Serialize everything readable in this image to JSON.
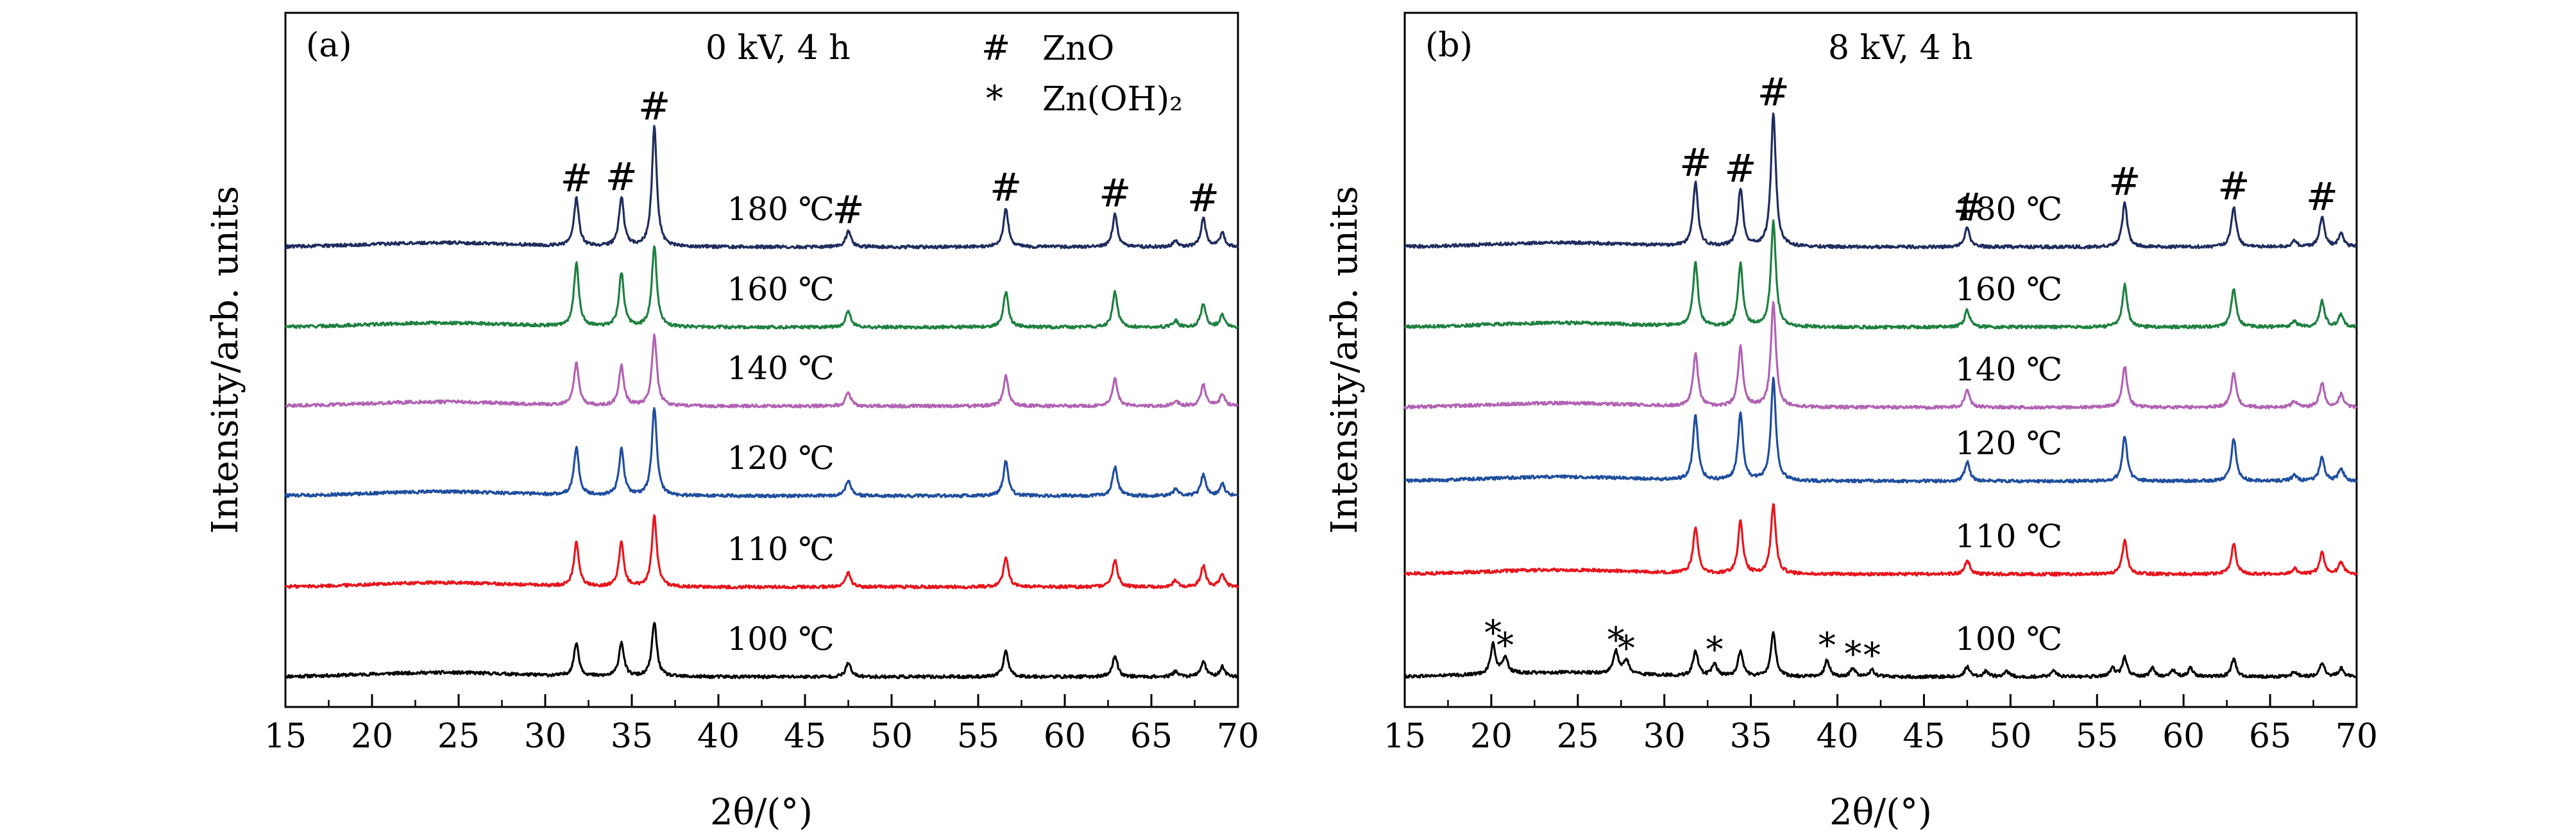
{
  "chart_data": [
    {
      "type": "line",
      "panel_label": "(a)",
      "title": "0 kV, 4 h",
      "xlabel": "2θ/(°)",
      "ylabel": "Intensity/arb. units",
      "xlim": [
        15,
        70
      ],
      "xticks": [
        15,
        20,
        25,
        30,
        35,
        40,
        45,
        50,
        55,
        60,
        65,
        70
      ],
      "legend": [
        {
          "symbol": "#",
          "label": "ZnO"
        },
        {
          "symbol": "*",
          "label": "Zn(OH)₂"
        }
      ],
      "peak_markers": [
        {
          "symbol": "#",
          "x": 31.8
        },
        {
          "symbol": "#",
          "x": 34.4
        },
        {
          "symbol": "#",
          "x": 36.3
        },
        {
          "symbol": "#",
          "x": 47.5
        },
        {
          "symbol": "#",
          "x": 56.6
        },
        {
          "symbol": "#",
          "x": 62.9
        },
        {
          "symbol": "#",
          "x": 68.0
        }
      ],
      "series": [
        {
          "name": "100 ℃",
          "label": "100 ℃",
          "color": "#000000",
          "offset": 0,
          "noise": 2.2,
          "peaks": [
            [
              31.8,
              47
            ],
            [
              34.4,
              49
            ],
            [
              36.3,
              77
            ],
            [
              47.5,
              20
            ],
            [
              56.6,
              37
            ],
            [
              62.9,
              30
            ],
            [
              66.4,
              8
            ],
            [
              68.0,
              22
            ],
            [
              69.1,
              14
            ]
          ],
          "extra_peaks": []
        },
        {
          "name": "110 ℃",
          "label": "110 ℃",
          "color": "#e8141c",
          "offset": 140,
          "noise": 2.2,
          "peaks": [
            [
              31.8,
              63
            ],
            [
              34.4,
              63
            ],
            [
              36.3,
              100
            ],
            [
              47.5,
              20
            ],
            [
              56.6,
              43
            ],
            [
              62.9,
              39
            ],
            [
              66.4,
              9
            ],
            [
              68.0,
              30
            ],
            [
              69.1,
              17
            ]
          ],
          "extra_peaks": []
        },
        {
          "name": "120 ℃",
          "label": "120 ℃",
          "color": "#1f4e9d",
          "offset": 282,
          "noise": 2.2,
          "peaks": [
            [
              31.8,
              68
            ],
            [
              34.4,
              66
            ],
            [
              36.3,
              125
            ],
            [
              47.5,
              22
            ],
            [
              56.6,
              50
            ],
            [
              62.9,
              42
            ],
            [
              66.4,
              9
            ],
            [
              68.0,
              30
            ],
            [
              69.1,
              17
            ]
          ],
          "extra_peaks": []
        },
        {
          "name": "140 ℃",
          "label": "140 ℃",
          "color": "#b162b3",
          "offset": 422,
          "noise": 2.2,
          "peaks": [
            [
              31.8,
              60
            ],
            [
              34.4,
              56
            ],
            [
              36.3,
              100
            ],
            [
              47.5,
              20
            ],
            [
              56.6,
              43
            ],
            [
              62.9,
              38
            ],
            [
              66.4,
              8
            ],
            [
              68.0,
              30
            ],
            [
              69.1,
              17
            ]
          ],
          "extra_peaks": []
        },
        {
          "name": "160 ℃",
          "label": "160 ℃",
          "color": "#1e8040",
          "offset": 545,
          "noise": 2.2,
          "peaks": [
            [
              31.8,
              90
            ],
            [
              34.4,
              77
            ],
            [
              36.3,
              115
            ],
            [
              47.5,
              23
            ],
            [
              56.6,
              50
            ],
            [
              62.9,
              50
            ],
            [
              66.4,
              9
            ],
            [
              68.0,
              33
            ],
            [
              69.1,
              17
            ]
          ],
          "extra_peaks": []
        },
        {
          "name": "180 ℃",
          "label": "180 ℃",
          "color": "#1f2c5e",
          "offset": 670,
          "noise": 2.2,
          "peaks": [
            [
              31.8,
              68
            ],
            [
              34.4,
              70
            ],
            [
              36.3,
              170
            ],
            [
              47.5,
              23
            ],
            [
              56.6,
              55
            ],
            [
              62.9,
              47
            ],
            [
              66.4,
              9
            ],
            [
              68.0,
              40
            ],
            [
              69.1,
              20
            ]
          ],
          "extra_peaks": []
        }
      ]
    },
    {
      "type": "line",
      "panel_label": "(b)",
      "title": "8 kV, 4 h",
      "xlabel": "2θ/(°)",
      "ylabel": "Intensity/arb. units",
      "xlim": [
        15,
        70
      ],
      "xticks": [
        15,
        20,
        25,
        30,
        35,
        40,
        45,
        50,
        55,
        60,
        65,
        70
      ],
      "peak_markers": [
        {
          "symbol": "#",
          "x": 31.8
        },
        {
          "symbol": "#",
          "x": 34.4
        },
        {
          "symbol": "#",
          "x": 36.3
        },
        {
          "symbol": "#",
          "x": 47.6
        },
        {
          "symbol": "#",
          "x": 56.6
        },
        {
          "symbol": "#",
          "x": 62.9
        },
        {
          "symbol": "#",
          "x": 68.0
        },
        {
          "symbol": "*",
          "x": 20.1
        },
        {
          "symbol": "*",
          "x": 20.8
        },
        {
          "symbol": "*",
          "x": 27.2
        },
        {
          "symbol": "*",
          "x": 27.8
        },
        {
          "symbol": "*",
          "x": 32.9
        },
        {
          "symbol": "*",
          "x": 39.4
        },
        {
          "symbol": "*",
          "x": 40.9
        },
        {
          "symbol": "*",
          "x": 42.0
        }
      ],
      "series": [
        {
          "name": "100 ℃",
          "label": "100 ℃",
          "color": "#000000",
          "offset": 0,
          "noise": 2.2,
          "peaks": [
            [
              31.8,
              35
            ],
            [
              34.4,
              37
            ],
            [
              36.3,
              62
            ],
            [
              47.5,
              14
            ],
            [
              56.6,
              27
            ],
            [
              62.9,
              25
            ],
            [
              66.4,
              7
            ],
            [
              68.0,
              20
            ],
            [
              69.1,
              12
            ]
          ],
          "extra_peaks": [
            [
              20.1,
              42
            ],
            [
              20.8,
              24
            ],
            [
              27.2,
              32
            ],
            [
              27.8,
              20
            ],
            [
              32.9,
              18
            ],
            [
              39.4,
              24
            ],
            [
              40.9,
              12
            ],
            [
              42.0,
              10
            ],
            [
              48.6,
              8
            ],
            [
              49.8,
              7
            ],
            [
              52.5,
              8
            ],
            [
              55.9,
              12
            ],
            [
              58.2,
              12
            ],
            [
              59.4,
              9
            ],
            [
              60.4,
              12
            ]
          ]
        },
        {
          "name": "110 ℃",
          "label": "110 ℃",
          "color": "#e8141c",
          "offset": 160,
          "noise": 2.2,
          "peaks": [
            [
              31.8,
              65
            ],
            [
              34.4,
              75
            ],
            [
              36.3,
              100
            ],
            [
              47.5,
              20
            ],
            [
              56.6,
              48
            ],
            [
              62.9,
              42
            ],
            [
              66.4,
              8
            ],
            [
              68.0,
              30
            ],
            [
              69.1,
              17
            ]
          ],
          "extra_peaks": []
        },
        {
          "name": "120 ℃",
          "label": "120 ℃",
          "color": "#1f4e9d",
          "offset": 305,
          "noise": 2.2,
          "peaks": [
            [
              31.8,
              92
            ],
            [
              34.4,
              95
            ],
            [
              36.3,
              145
            ],
            [
              47.5,
              27
            ],
            [
              56.6,
              63
            ],
            [
              62.9,
              60
            ],
            [
              66.4,
              9
            ],
            [
              68.0,
              34
            ],
            [
              69.1,
              18
            ]
          ],
          "extra_peaks": []
        },
        {
          "name": "140 ℃",
          "label": "140 ℃",
          "color": "#b162b3",
          "offset": 420,
          "noise": 2.2,
          "peaks": [
            [
              31.8,
              75
            ],
            [
              34.4,
              85
            ],
            [
              36.3,
              150
            ],
            [
              47.5,
              25
            ],
            [
              56.6,
              58
            ],
            [
              62.9,
              50
            ],
            [
              66.4,
              9
            ],
            [
              68.0,
              34
            ],
            [
              69.1,
              18
            ]
          ],
          "extra_peaks": []
        },
        {
          "name": "160 ℃",
          "label": "160 ℃",
          "color": "#1e8040",
          "offset": 545,
          "noise": 2.2,
          "peaks": [
            [
              31.8,
              90
            ],
            [
              34.4,
              88
            ],
            [
              36.3,
              150
            ],
            [
              47.5,
              25
            ],
            [
              56.6,
              60
            ],
            [
              62.9,
              55
            ],
            [
              66.4,
              9
            ],
            [
              68.0,
              37
            ],
            [
              69.1,
              18
            ]
          ],
          "extra_peaks": []
        },
        {
          "name": "180 ℃",
          "label": "180 ℃",
          "color": "#1f2c5e",
          "offset": 670,
          "noise": 2.2,
          "peaks": [
            [
              31.8,
              90
            ],
            [
              34.4,
              82
            ],
            [
              36.3,
              190
            ],
            [
              47.5,
              27
            ],
            [
              56.6,
              63
            ],
            [
              62.9,
              57
            ],
            [
              66.4,
              9
            ],
            [
              68.0,
              42
            ],
            [
              69.1,
              20
            ]
          ],
          "extra_peaks": []
        }
      ]
    }
  ]
}
